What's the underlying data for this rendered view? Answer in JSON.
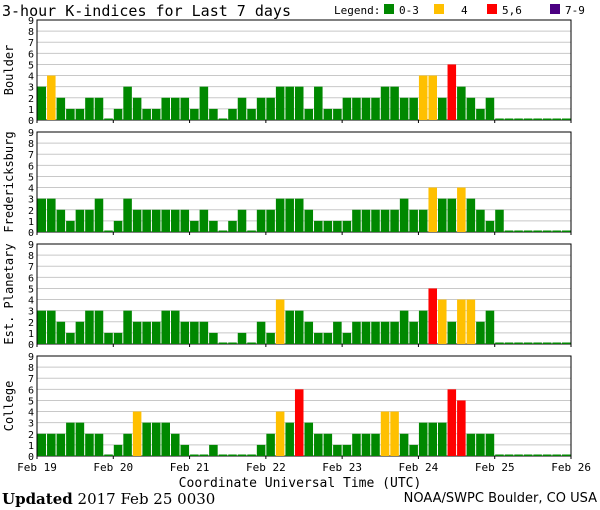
{
  "title": "3-hour K-indices for Last 7 days",
  "legend": {
    "label": "Legend:",
    "items": [
      {
        "range": "0-3",
        "color": "#008800"
      },
      {
        "range": "4",
        "color": "#ffc000"
      },
      {
        "range": "5,6",
        "color": "#ff0000"
      },
      {
        "range": "7-9",
        "color": "#4b0082"
      }
    ]
  },
  "chart_data": [
    {
      "type": "bar",
      "ylabel": "Boulder",
      "ylim": [
        0,
        9
      ],
      "x_tick_labels": [
        "Feb 19",
        "Feb 20",
        "Feb 21",
        "Feb 22",
        "Feb 23",
        "Feb 24",
        "Feb 25",
        "Feb 26"
      ],
      "values": [
        3,
        4,
        2,
        1,
        1,
        2,
        2,
        0,
        1,
        3,
        2,
        1,
        1,
        2,
        2,
        2,
        1,
        3,
        1,
        0,
        1,
        2,
        1,
        2,
        2,
        3,
        3,
        3,
        1,
        3,
        1,
        1,
        2,
        2,
        2,
        2,
        3,
        3,
        2,
        2,
        4,
        4,
        2,
        5,
        3,
        2,
        1,
        2,
        0,
        0,
        0,
        0,
        0,
        0,
        0,
        0
      ]
    },
    {
      "type": "bar",
      "ylabel": "Fredericksburg",
      "ylim": [
        0,
        9
      ],
      "values": [
        3,
        3,
        2,
        1,
        2,
        2,
        3,
        0,
        1,
        3,
        2,
        2,
        2,
        2,
        2,
        2,
        1,
        2,
        1,
        0,
        1,
        2,
        0,
        2,
        2,
        3,
        3,
        3,
        2,
        1,
        1,
        1,
        1,
        2,
        2,
        2,
        2,
        2,
        3,
        2,
        2,
        4,
        3,
        3,
        4,
        3,
        2,
        1,
        2,
        0,
        0,
        0,
        0,
        0,
        0,
        0
      ]
    },
    {
      "type": "bar",
      "ylabel": "Est. Planetary",
      "ylim": [
        0,
        9
      ],
      "values": [
        3,
        3,
        2,
        1,
        2,
        3,
        3,
        1,
        1,
        3,
        2,
        2,
        2,
        3,
        3,
        2,
        2,
        2,
        1,
        0,
        0,
        1,
        0,
        2,
        1,
        4,
        3,
        3,
        2,
        1,
        1,
        2,
        1,
        2,
        2,
        2,
        2,
        2,
        3,
        2,
        3,
        5,
        4,
        2,
        4,
        4,
        2,
        3,
        0,
        0,
        0,
        0,
        0,
        0,
        0,
        0
      ]
    },
    {
      "type": "bar",
      "ylabel": "College",
      "ylim": [
        0,
        9
      ],
      "values": [
        2,
        2,
        2,
        3,
        3,
        2,
        2,
        0,
        1,
        2,
        4,
        3,
        3,
        3,
        2,
        1,
        0,
        0,
        1,
        0,
        0,
        0,
        0,
        1,
        2,
        4,
        3,
        6,
        3,
        2,
        2,
        1,
        1,
        2,
        2,
        2,
        4,
        4,
        2,
        1,
        3,
        3,
        3,
        6,
        5,
        2,
        2,
        2,
        0,
        0,
        0,
        0,
        0,
        0,
        0,
        0
      ]
    }
  ],
  "xlabel": "Coordinate Universal Time (UTC)",
  "footer": {
    "updated_label": "Updated",
    "updated_value": "2017 Feb 25 0030",
    "source": "NOAA/SWPC Boulder, CO USA"
  }
}
